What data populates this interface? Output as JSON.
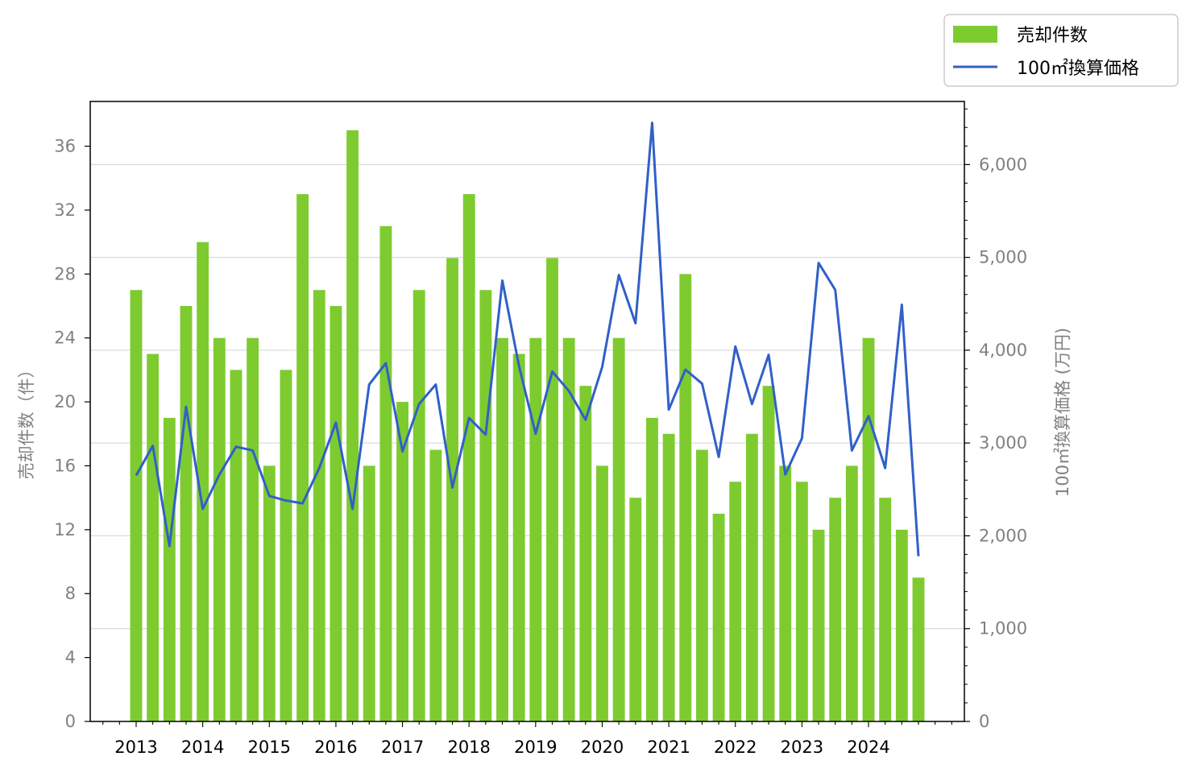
{
  "chart_data": {
    "type": "bar",
    "legend": {
      "placement": "top-right",
      "entries": [
        "売却件数",
        "100㎡換算価格"
      ]
    },
    "left_axis": {
      "label": "売却件数（件）",
      "ylim": [
        0,
        38.8
      ],
      "ticks": [
        0,
        4,
        8,
        12,
        16,
        20,
        24,
        28,
        32,
        36
      ]
    },
    "right_axis": {
      "label": "100㎡換算価格 (万円)",
      "ylim": [
        0,
        6680
      ],
      "ticks": [
        0,
        1000,
        2000,
        3000,
        4000,
        5000,
        6000
      ],
      "tick_labels": [
        "0",
        "1,000",
        "2,000",
        "3,000",
        "4,000",
        "5,000",
        "6,000"
      ],
      "grid": true
    },
    "x_tick_labels": [
      "2013",
      "2014",
      "2015",
      "2016",
      "2017",
      "2018",
      "2019",
      "2020",
      "2021",
      "2022",
      "2023",
      "2024"
    ],
    "x": [
      "2013Q1",
      "2013Q2",
      "2013Q3",
      "2013Q4",
      "2014Q1",
      "2014Q2",
      "2014Q3",
      "2014Q4",
      "2015Q1",
      "2015Q2",
      "2015Q3",
      "2015Q4",
      "2016Q1",
      "2016Q2",
      "2016Q3",
      "2016Q4",
      "2017Q1",
      "2017Q2",
      "2017Q3",
      "2017Q4",
      "2018Q1",
      "2018Q2",
      "2018Q3",
      "2018Q4",
      "2019Q1",
      "2019Q2",
      "2019Q3",
      "2019Q4",
      "2020Q1",
      "2020Q2",
      "2020Q3",
      "2020Q4",
      "2021Q1",
      "2021Q2",
      "2021Q3",
      "2021Q4",
      "2022Q1",
      "2022Q2",
      "2022Q3",
      "2022Q4",
      "2023Q1",
      "2023Q2",
      "2023Q3",
      "2023Q4",
      "2024Q1",
      "2024Q2",
      "2024Q3",
      "2024Q4"
    ],
    "series": [
      {
        "name": "売却件数",
        "type": "bar",
        "axis": "left",
        "color": "#7ecb30",
        "values": [
          27,
          23,
          19,
          26,
          30,
          24,
          22,
          24,
          16,
          22,
          33,
          27,
          26,
          37,
          16,
          31,
          20,
          27,
          17,
          29,
          33,
          27,
          24,
          23,
          24,
          29,
          24,
          21,
          16,
          24,
          14,
          19,
          18,
          28,
          17,
          13,
          15,
          18,
          21,
          16,
          15,
          12,
          14,
          16,
          24,
          14,
          12,
          9
        ]
      },
      {
        "name": "100㎡換算価格",
        "type": "line",
        "axis": "right",
        "color": "#3060c8",
        "values": [
          2650,
          2970,
          1890,
          3390,
          2290,
          2660,
          2960,
          2920,
          2430,
          2380,
          2350,
          2730,
          3220,
          2290,
          3630,
          3860,
          2910,
          3420,
          3630,
          2520,
          3270,
          3090,
          4750,
          3830,
          3100,
          3770,
          3560,
          3250,
          3820,
          4810,
          4290,
          6450,
          3360,
          3790,
          3640,
          2850,
          4040,
          3420,
          3950,
          2660,
          3050,
          4940,
          4650,
          2920,
          3290,
          2730,
          4490,
          1780
        ]
      }
    ]
  }
}
